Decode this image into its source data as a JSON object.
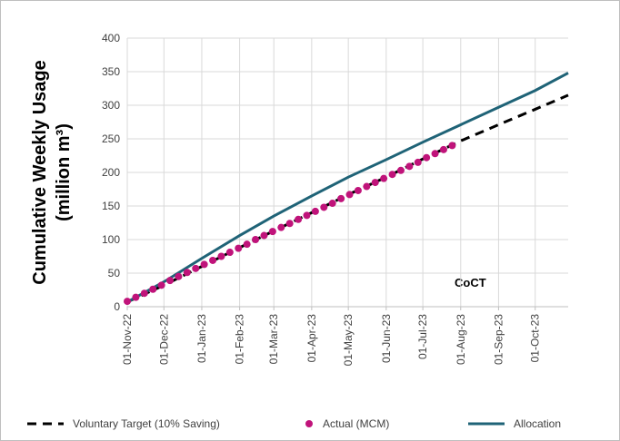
{
  "chart_data": {
    "type": "line",
    "ylabel": [
      "Cumulative Weekly Usage",
      "(million m³)"
    ],
    "annotation": "CoCT",
    "xlim": [
      "2022-11-01",
      "2023-10-28"
    ],
    "xticks": [
      {
        "value": "2022-11-01",
        "label": "01-Nov-22"
      },
      {
        "value": "2022-12-01",
        "label": "01-Dec-22"
      },
      {
        "value": "2023-01-01",
        "label": "01-Jan-23"
      },
      {
        "value": "2023-02-01",
        "label": "01-Feb-23"
      },
      {
        "value": "2023-03-01",
        "label": "01-Mar-23"
      },
      {
        "value": "2023-04-01",
        "label": "01-Apr-23"
      },
      {
        "value": "2023-05-01",
        "label": "01-May-23"
      },
      {
        "value": "2023-06-01",
        "label": "01-Jun-23"
      },
      {
        "value": "2023-07-01",
        "label": "01-Jul-23"
      },
      {
        "value": "2023-08-01",
        "label": "01-Aug-23"
      },
      {
        "value": "2023-09-01",
        "label": "01-Sep-23"
      },
      {
        "value": "2023-10-01",
        "label": "01-Oct-23"
      }
    ],
    "ylim": [
      0,
      400
    ],
    "yticks": [
      0,
      50,
      100,
      150,
      200,
      250,
      300,
      350,
      400
    ],
    "grid": true,
    "legend": "bottom",
    "series": [
      {
        "name": "Voluntary Target (10% Saving)",
        "color": "#000000",
        "style": "dashed",
        "x": [
          "2022-11-01",
          "2022-12-01",
          "2023-01-01",
          "2023-02-01",
          "2023-03-01",
          "2023-04-01",
          "2023-05-01",
          "2023-06-01",
          "2023-07-01",
          "2023-08-01",
          "2023-09-01",
          "2023-10-01",
          "2023-10-28"
        ],
        "values": [
          7,
          32,
          60,
          88,
          113,
          140,
          167,
          193,
          220,
          247,
          271,
          294,
          315
        ]
      },
      {
        "name": "Actual (MCM)",
        "color": "#c0137a",
        "style": "markers",
        "x": [
          "2022-11-01",
          "2022-11-08",
          "2022-11-15",
          "2022-11-22",
          "2022-11-29",
          "2022-12-06",
          "2022-12-13",
          "2022-12-20",
          "2022-12-27",
          "2023-01-03",
          "2023-01-10",
          "2023-01-17",
          "2023-01-24",
          "2023-01-31",
          "2023-02-07",
          "2023-02-14",
          "2023-02-21",
          "2023-02-28",
          "2023-03-07",
          "2023-03-14",
          "2023-03-21",
          "2023-03-28",
          "2023-04-04",
          "2023-04-11",
          "2023-04-18",
          "2023-04-25",
          "2023-05-02",
          "2023-05-09",
          "2023-05-16",
          "2023-05-23",
          "2023-05-30",
          "2023-06-06",
          "2023-06-13",
          "2023-06-20",
          "2023-06-27",
          "2023-07-04",
          "2023-07-11",
          "2023-07-18",
          "2023-07-25"
        ],
        "values": [
          8,
          14,
          20,
          26,
          32,
          39,
          45,
          51,
          57,
          63,
          69,
          75,
          81,
          87,
          93,
          100,
          106,
          112,
          118,
          124,
          130,
          136,
          142,
          148,
          154,
          161,
          167,
          173,
          179,
          185,
          191,
          197,
          203,
          209,
          215,
          222,
          228,
          234,
          240
        ]
      },
      {
        "name": "Allocation",
        "color": "#1f6377",
        "style": "solid",
        "x": [
          "2022-11-01",
          "2022-12-01",
          "2023-01-01",
          "2023-02-01",
          "2023-03-01",
          "2023-04-01",
          "2023-05-01",
          "2023-06-01",
          "2023-07-01",
          "2023-08-01",
          "2023-09-01",
          "2023-10-01",
          "2023-10-28"
        ],
        "values": [
          7,
          37,
          72,
          106,
          135,
          165,
          193,
          219,
          245,
          271,
          297,
          322,
          348
        ]
      }
    ]
  }
}
